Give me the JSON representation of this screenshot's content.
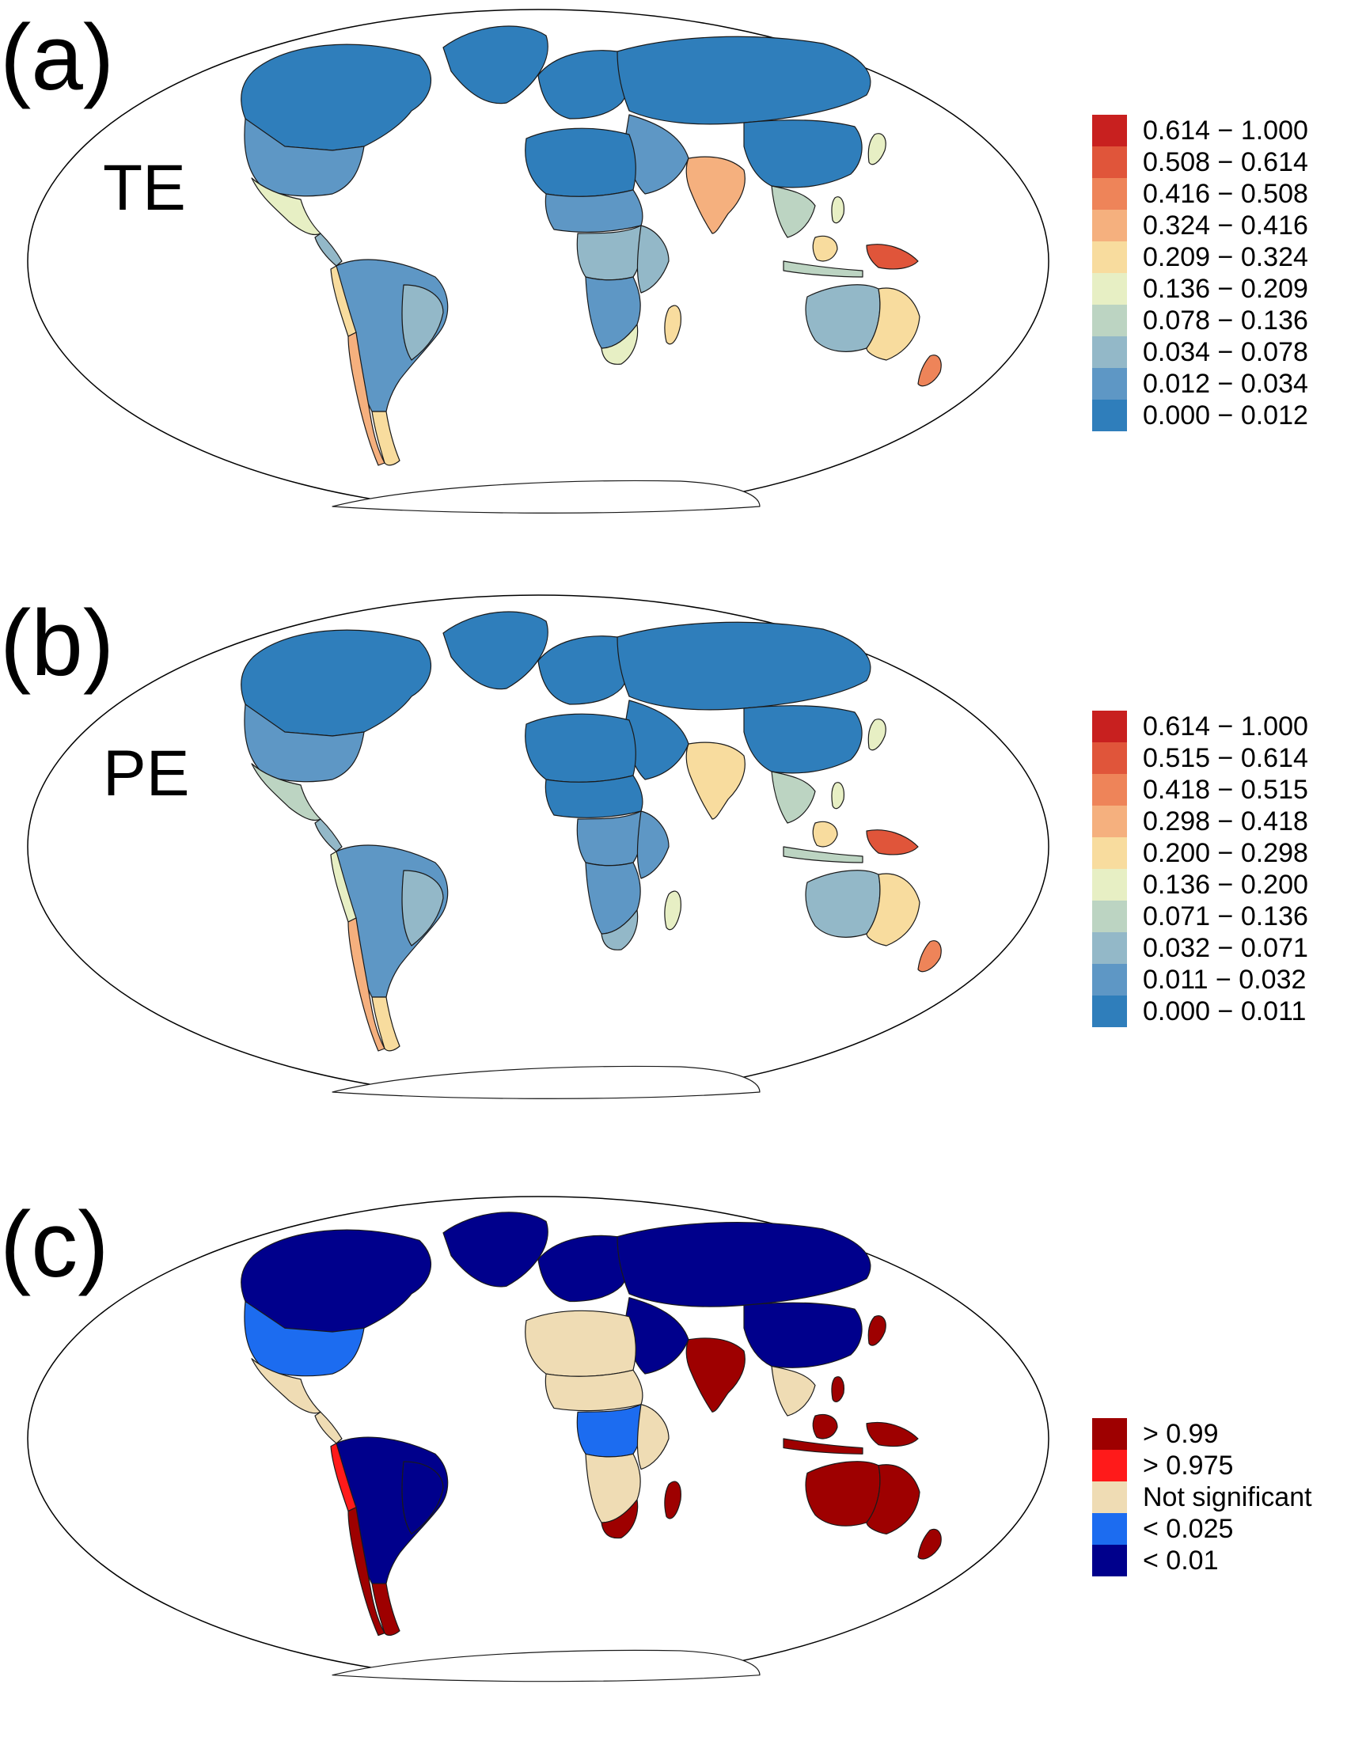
{
  "panels": [
    {
      "id": "a",
      "label": "(a)",
      "map_label": "TE",
      "legend": [
        {
          "label": "0.614 − 1.000",
          "color": "#c8201f"
        },
        {
          "label": "0.508 − 0.614",
          "color": "#e0553a"
        },
        {
          "label": "0.416 − 0.508",
          "color": "#ee8459"
        },
        {
          "label": "0.324 − 0.416",
          "color": "#f5b07e"
        },
        {
          "label": "0.209 − 0.324",
          "color": "#f8dc9e"
        },
        {
          "label": "0.136 − 0.209",
          "color": "#e7efc4"
        },
        {
          "label": "0.078 − 0.136",
          "color": "#bcd4c2"
        },
        {
          "label": "0.034 − 0.078",
          "color": "#93b8c8"
        },
        {
          "label": "0.012 − 0.034",
          "color": "#5e97c5"
        },
        {
          "label": "0.000 − 0.012",
          "color": "#2f7ebb"
        }
      ]
    },
    {
      "id": "b",
      "label": "(b)",
      "map_label": "PE",
      "legend": [
        {
          "label": "0.614 − 1.000",
          "color": "#c8201f"
        },
        {
          "label": "0.515 − 0.614",
          "color": "#e0553a"
        },
        {
          "label": "0.418 − 0.515",
          "color": "#ee8459"
        },
        {
          "label": "0.298 − 0.418",
          "color": "#f5b07e"
        },
        {
          "label": "0.200 − 0.298",
          "color": "#f8dc9e"
        },
        {
          "label": "0.136 − 0.200",
          "color": "#e7efc4"
        },
        {
          "label": "0.071 − 0.136",
          "color": "#bcd4c2"
        },
        {
          "label": "0.032 − 0.071",
          "color": "#93b8c8"
        },
        {
          "label": "0.011 − 0.032",
          "color": "#5e97c5"
        },
        {
          "label": "0.000 − 0.011",
          "color": "#2f7ebb"
        }
      ]
    },
    {
      "id": "c",
      "label": "(c)",
      "map_label": "",
      "legend": [
        {
          "label": "> 0.99",
          "color": "#9e0000"
        },
        {
          "label": "> 0.975",
          "color": "#ff1a1a"
        },
        {
          "label": "Not significant",
          "color": "#efdcb4"
        },
        {
          "label": "< 0.025",
          "color": "#1c6cf0"
        },
        {
          "label": "< 0.01",
          "color": "#00008c"
        }
      ]
    }
  ],
  "region_colors": {
    "a": {
      "north_america": "#2f7ebb",
      "usa_west": "#5e97c5",
      "mexico": "#e7efc4",
      "central_america": "#93b8c8",
      "greenland": "#2f7ebb",
      "south_america": "#5e97c5",
      "andes": "#f8dc9e",
      "chile": "#f5b07e",
      "patagonia": "#f8dc9e",
      "brazil_east": "#93b8c8",
      "europe": "#2f7ebb",
      "russia": "#2f7ebb",
      "north_africa": "#2f7ebb",
      "sahel": "#5e97c5",
      "central_africa": "#93b8c8",
      "east_africa": "#93b8c8",
      "southern_africa": "#5e97c5",
      "south_africa": "#e7efc4",
      "madagascar": "#f8dc9e",
      "middle_east": "#5e97c5",
      "india": "#f5b07e",
      "china": "#2f7ebb",
      "se_asia": "#bcd4c2",
      "japan": "#e7efc4",
      "philippines": "#e7efc4",
      "indonesia": "#bcd4c2",
      "borneo": "#f8dc9e",
      "new_guinea": "#e0553a",
      "australia_west": "#93b8c8",
      "australia_east": "#f8dc9e",
      "new_zealand": "#ee8459",
      "antarctica": "#ffffff"
    },
    "b": {
      "north_america": "#2f7ebb",
      "usa_west": "#5e97c5",
      "mexico": "#bcd4c2",
      "central_america": "#93b8c8",
      "greenland": "#2f7ebb",
      "south_america": "#5e97c5",
      "andes": "#e7efc4",
      "chile": "#f5b07e",
      "patagonia": "#f8dc9e",
      "brazil_east": "#93b8c8",
      "europe": "#2f7ebb",
      "russia": "#2f7ebb",
      "north_africa": "#2f7ebb",
      "sahel": "#2f7ebb",
      "central_africa": "#5e97c5",
      "east_africa": "#5e97c5",
      "southern_africa": "#5e97c5",
      "south_africa": "#93b8c8",
      "madagascar": "#e7efc4",
      "middle_east": "#2f7ebb",
      "india": "#f8dc9e",
      "china": "#2f7ebb",
      "se_asia": "#bcd4c2",
      "japan": "#e7efc4",
      "philippines": "#e7efc4",
      "indonesia": "#bcd4c2",
      "borneo": "#f8dc9e",
      "new_guinea": "#e0553a",
      "australia_west": "#93b8c8",
      "australia_east": "#f8dc9e",
      "new_zealand": "#ee8459",
      "antarctica": "#ffffff"
    },
    "c": {
      "north_america": "#00008c",
      "usa_west": "#1c6cf0",
      "mexico": "#efdcb4",
      "central_america": "#efdcb4",
      "greenland": "#00008c",
      "south_america": "#00008c",
      "andes": "#ff1a1a",
      "chile": "#9e0000",
      "patagonia": "#9e0000",
      "brazil_east": "#00008c",
      "europe": "#00008c",
      "russia": "#00008c",
      "north_africa": "#efdcb4",
      "sahel": "#efdcb4",
      "central_africa": "#1c6cf0",
      "east_africa": "#efdcb4",
      "southern_africa": "#efdcb4",
      "south_africa": "#9e0000",
      "madagascar": "#9e0000",
      "middle_east": "#00008c",
      "india": "#9e0000",
      "china": "#00008c",
      "se_asia": "#efdcb4",
      "japan": "#9e0000",
      "philippines": "#9e0000",
      "indonesia": "#9e0000",
      "borneo": "#9e0000",
      "new_guinea": "#9e0000",
      "australia_west": "#9e0000",
      "australia_east": "#9e0000",
      "new_zealand": "#9e0000",
      "antarctica": "#ffffff"
    }
  }
}
